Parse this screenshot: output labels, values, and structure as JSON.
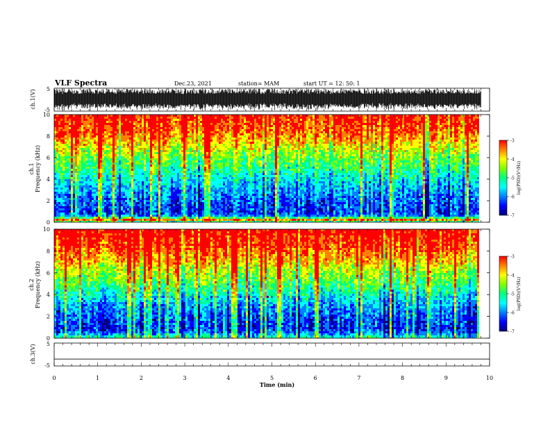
{
  "header": {
    "title": "VLF Spectra",
    "date": "Dec.23, 2021",
    "station": "station= MAM",
    "start": "start UT =  12: 50: 1"
  },
  "colors": {
    "spectrum": [
      "#00007a",
      "#0000ff",
      "#0080ff",
      "#00ffff",
      "#00ff80",
      "#80ff00",
      "#ffff00",
      "#ff8000",
      "#ff0000"
    ],
    "waveform": "#000000"
  },
  "chart_data": [
    {
      "type": "line",
      "panel": "ch1-waveform",
      "ylabel": "ch.1(V)",
      "ylim": [
        -5,
        5
      ],
      "yticks": [
        "5",
        "-5"
      ],
      "xlim": [
        0,
        10
      ],
      "note_values": "dense noise-like waveform spanning roughly -4 to +4 V across the full 0-9.8 min record"
    },
    {
      "type": "heatmap",
      "panel": "ch1-spectrogram",
      "ylabel_line1": "ch.1",
      "ylabel_line2": "Frequency (kHz)",
      "ylim": [
        0,
        10
      ],
      "yticks": [
        "0",
        "2",
        "4",
        "6",
        "8",
        "10"
      ],
      "xlim": [
        0,
        10
      ],
      "x_end": 9.8,
      "colorbar_label": "log(PSD)(V²/Hz)",
      "colorbar_range": [
        -7,
        -3
      ],
      "colorbar_ticks": [
        "-3",
        "-4",
        "-5",
        "-6",
        "-7"
      ],
      "profile_khz": [
        0,
        0.3,
        0.6,
        1,
        1.5,
        2,
        2.5,
        3,
        3.5,
        4,
        4.5,
        5,
        5.5,
        6,
        6.5,
        7,
        7.5,
        8,
        8.5,
        9,
        9.5,
        10
      ],
      "profile_logpsd": [
        -5.6,
        -3.6,
        -5.8,
        -6.2,
        -6.1,
        -6.0,
        -5.9,
        -5.7,
        -5.6,
        -5.4,
        -5.2,
        -5.0,
        -4.8,
        -4.6,
        -4.4,
        -4.2,
        -3.9,
        -3.7,
        -3.5,
        -3.4,
        -3.3,
        -3.2
      ]
    },
    {
      "type": "heatmap",
      "panel": "ch2-spectrogram",
      "ylabel_line1": "ch.2",
      "ylabel_line2": "Frequency (kHz)",
      "ylim": [
        0,
        10
      ],
      "yticks": [
        "0",
        "2",
        "4",
        "6",
        "8",
        "10"
      ],
      "xlim": [
        0,
        10
      ],
      "x_end": 9.8,
      "colorbar_label": "log(PSD)(V²/Hz)",
      "colorbar_range": [
        -7,
        -3
      ],
      "colorbar_ticks": [
        "-3",
        "-4",
        "-5",
        "-6",
        "-7"
      ],
      "profile_khz": [
        0,
        0.3,
        0.6,
        1,
        1.5,
        2,
        2.5,
        3,
        3.5,
        4,
        4.5,
        5,
        5.5,
        6,
        6.5,
        7,
        7.5,
        8,
        8.5,
        9,
        9.5,
        10
      ],
      "profile_logpsd": [
        -5.0,
        -5.4,
        -6.0,
        -6.3,
        -6.2,
        -6.1,
        -6.0,
        -5.8,
        -5.6,
        -5.4,
        -5.1,
        -4.9,
        -4.7,
        -4.5,
        -4.3,
        -4.0,
        -3.8,
        -3.6,
        -3.4,
        -3.3,
        -3.2,
        -3.1
      ]
    },
    {
      "type": "line",
      "panel": "ch3-waveform",
      "ylabel": "ch.3(V)",
      "ylim": [
        -5,
        5
      ],
      "yticks": [
        "5",
        "-5"
      ],
      "xlim": [
        0,
        10
      ],
      "series": [
        {
          "x": [
            0,
            10
          ],
          "y": [
            -2,
            -2
          ]
        }
      ]
    }
  ],
  "xaxis": {
    "label": "Time (min)",
    "ticks": [
      "0",
      "1",
      "2",
      "3",
      "4",
      "5",
      "6",
      "7",
      "8",
      "9",
      "10"
    ]
  }
}
